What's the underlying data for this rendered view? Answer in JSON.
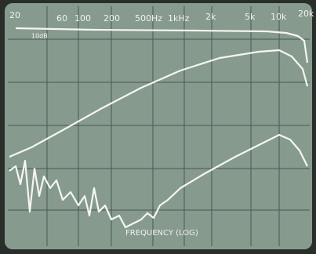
{
  "freq_labels": [
    "20",
    "60",
    "100",
    "200",
    "500Hz",
    "1kHz",
    "2k",
    "5k",
    "10k",
    "20k"
  ],
  "scale_label": "10dB",
  "axis_title": "FREQUENCY (LOG)"
}
